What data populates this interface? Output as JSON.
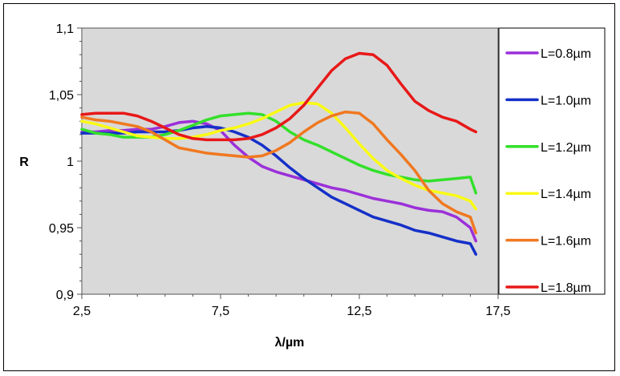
{
  "chart_data": {
    "type": "line",
    "xlabel": "λ/µm",
    "ylabel": "R",
    "xlim": [
      2.5,
      17.5
    ],
    "ylim": [
      0.9,
      1.1
    ],
    "x_ticks": [
      2.5,
      7.5,
      12.5,
      17.5
    ],
    "x_tick_labels": [
      "2,5",
      "7,5",
      "12,5",
      "17,5"
    ],
    "y_ticks": [
      0.9,
      0.95,
      1.0,
      1.05,
      1.1
    ],
    "y_tick_labels": [
      "0,9",
      "0,95",
      "1",
      "1,05",
      "1,1"
    ],
    "grid": false,
    "plot_background": "#d9d9d9",
    "legend_position": "right",
    "series": [
      {
        "name": "L=0.8µm",
        "color": "#9b30d9",
        "x": [
          2.5,
          3.0,
          3.5,
          4.0,
          4.5,
          5.0,
          5.5,
          6.0,
          6.5,
          7.0,
          7.5,
          8.0,
          8.5,
          9.0,
          9.5,
          10.0,
          10.5,
          11.0,
          11.5,
          12.0,
          12.5,
          13.0,
          13.5,
          14.0,
          14.5,
          15.0,
          15.5,
          16.0,
          16.5,
          16.7
        ],
        "y": [
          1.022,
          1.022,
          1.023,
          1.023,
          1.024,
          1.024,
          1.026,
          1.029,
          1.03,
          1.028,
          1.023,
          1.012,
          1.003,
          0.996,
          0.992,
          0.989,
          0.986,
          0.983,
          0.98,
          0.978,
          0.975,
          0.972,
          0.97,
          0.968,
          0.965,
          0.963,
          0.962,
          0.958,
          0.95,
          0.94
        ]
      },
      {
        "name": "L=1.0µm",
        "color": "#1530c8",
        "x": [
          2.5,
          3.0,
          3.5,
          4.0,
          4.5,
          5.0,
          5.5,
          6.0,
          6.5,
          7.0,
          7.5,
          8.0,
          8.5,
          9.0,
          9.5,
          10.0,
          10.5,
          11.0,
          11.5,
          12.0,
          12.5,
          13.0,
          13.5,
          14.0,
          14.5,
          15.0,
          15.5,
          16.0,
          16.5,
          16.7
        ],
        "y": [
          1.021,
          1.021,
          1.021,
          1.021,
          1.022,
          1.022,
          1.022,
          1.023,
          1.025,
          1.026,
          1.025,
          1.022,
          1.018,
          1.012,
          1.004,
          0.995,
          0.987,
          0.98,
          0.973,
          0.968,
          0.963,
          0.958,
          0.955,
          0.952,
          0.948,
          0.946,
          0.943,
          0.94,
          0.938,
          0.93
        ]
      },
      {
        "name": "L=1.2µm",
        "color": "#33e02a",
        "x": [
          2.5,
          3.0,
          3.5,
          4.0,
          4.5,
          5.0,
          5.5,
          6.0,
          6.5,
          7.0,
          7.5,
          8.0,
          8.5,
          9.0,
          9.5,
          10.0,
          10.5,
          11.0,
          11.5,
          12.0,
          12.5,
          13.0,
          13.5,
          14.0,
          14.5,
          15.0,
          15.5,
          16.0,
          16.5,
          16.7
        ],
        "y": [
          1.024,
          1.021,
          1.02,
          1.018,
          1.018,
          1.018,
          1.02,
          1.023,
          1.027,
          1.031,
          1.034,
          1.035,
          1.036,
          1.035,
          1.03,
          1.022,
          1.016,
          1.012,
          1.007,
          1.002,
          0.997,
          0.993,
          0.99,
          0.988,
          0.986,
          0.985,
          0.986,
          0.987,
          0.988,
          0.976
        ]
      },
      {
        "name": "L=1.4µm",
        "color": "#fafa14",
        "x": [
          2.5,
          3.0,
          3.5,
          4.0,
          4.5,
          5.0,
          5.5,
          6.0,
          6.5,
          7.0,
          7.5,
          8.0,
          8.5,
          9.0,
          9.5,
          10.0,
          10.5,
          11.0,
          11.5,
          12.0,
          12.5,
          13.0,
          13.5,
          14.0,
          14.5,
          15.0,
          15.5,
          16.0,
          16.5,
          16.7
        ],
        "y": [
          1.03,
          1.028,
          1.025,
          1.022,
          1.019,
          1.018,
          1.017,
          1.017,
          1.018,
          1.02,
          1.023,
          1.025,
          1.028,
          1.032,
          1.037,
          1.042,
          1.044,
          1.043,
          1.036,
          1.025,
          1.013,
          1.002,
          0.993,
          0.987,
          0.982,
          0.978,
          0.976,
          0.974,
          0.97,
          0.964
        ]
      },
      {
        "name": "L=1.6µm",
        "color": "#f07820",
        "x": [
          2.5,
          3.0,
          3.5,
          4.0,
          4.5,
          5.0,
          5.5,
          6.0,
          6.5,
          7.0,
          7.5,
          8.0,
          8.5,
          9.0,
          9.5,
          10.0,
          10.5,
          11.0,
          11.5,
          12.0,
          12.5,
          13.0,
          13.5,
          14.0,
          14.5,
          15.0,
          15.5,
          16.0,
          16.5,
          16.7
        ],
        "y": [
          1.033,
          1.031,
          1.03,
          1.028,
          1.026,
          1.022,
          1.016,
          1.01,
          1.008,
          1.006,
          1.005,
          1.004,
          1.003,
          1.004,
          1.008,
          1.014,
          1.022,
          1.029,
          1.034,
          1.037,
          1.036,
          1.028,
          1.016,
          1.005,
          0.993,
          0.978,
          0.968,
          0.962,
          0.958,
          0.946
        ]
      },
      {
        "name": "L=1.8µm",
        "color": "#e81818",
        "x": [
          2.5,
          3.0,
          3.5,
          4.0,
          4.5,
          5.0,
          5.5,
          6.0,
          6.5,
          7.0,
          7.5,
          8.0,
          8.5,
          9.0,
          9.5,
          10.0,
          10.5,
          11.0,
          11.5,
          12.0,
          12.5,
          13.0,
          13.5,
          14.0,
          14.5,
          15.0,
          15.5,
          16.0,
          16.5,
          16.7
        ],
        "y": [
          1.035,
          1.036,
          1.036,
          1.036,
          1.034,
          1.03,
          1.025,
          1.02,
          1.017,
          1.016,
          1.016,
          1.016,
          1.017,
          1.02,
          1.025,
          1.032,
          1.042,
          1.055,
          1.068,
          1.077,
          1.081,
          1.08,
          1.072,
          1.058,
          1.045,
          1.038,
          1.033,
          1.03,
          1.024,
          1.022
        ]
      }
    ]
  }
}
